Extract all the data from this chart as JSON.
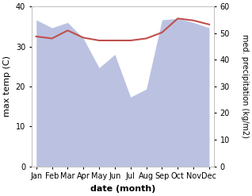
{
  "months": [
    "Jan",
    "Feb",
    "Mar",
    "Apr",
    "May",
    "Jun",
    "Jul",
    "Aug",
    "Sep",
    "Oct",
    "Nov",
    "Dec"
  ],
  "month_indices": [
    0,
    1,
    2,
    3,
    4,
    5,
    6,
    7,
    8,
    9,
    10,
    11
  ],
  "temp_line": [
    32.5,
    32.0,
    34.0,
    32.2,
    31.5,
    31.5,
    31.5,
    32.0,
    33.5,
    37.0,
    36.5,
    35.5
  ],
  "precip_right": [
    55.0,
    52.0,
    54.0,
    48.0,
    37.0,
    42.0,
    26.0,
    29.0,
    55.0,
    55.5,
    54.0,
    52.0
  ],
  "temp_line_color": "#c0504d",
  "precip_fill_color": "#b0b8dc",
  "precip_fill_alpha": 0.85,
  "left_ylim": [
    0,
    40
  ],
  "right_ylim": [
    0,
    60
  ],
  "left_yticks": [
    0,
    10,
    20,
    30,
    40
  ],
  "right_yticks": [
    0,
    10,
    20,
    30,
    40,
    50,
    60
  ],
  "xlabel": "date (month)",
  "ylabel_left": "max temp (C)",
  "ylabel_right": "med. precipitation (kg/m2)",
  "bg_color": "#ffffff"
}
